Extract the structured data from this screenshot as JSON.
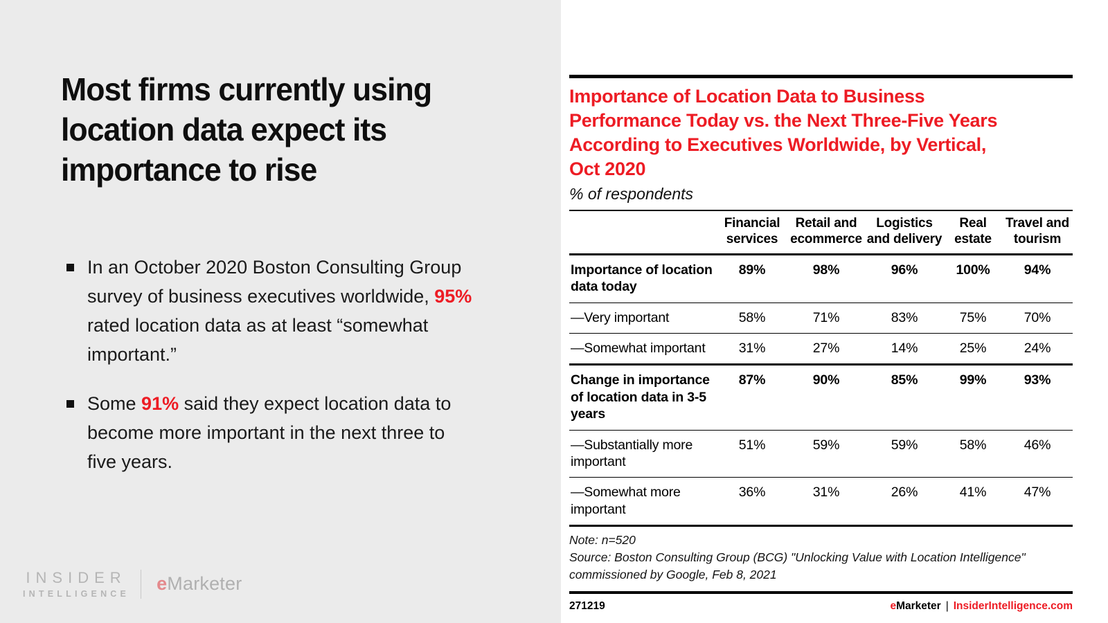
{
  "left": {
    "headline_lines": [
      "Most firms currently using",
      "location data expect its",
      "importance to rise"
    ],
    "bullets": [
      {
        "pre": "In an October 2020 Boston Consulting Group survey of business executives worldwide, ",
        "highlight": "95%",
        "post": " rated location data as at least “somewhat important.”"
      },
      {
        "pre": "Some ",
        "highlight": "91%",
        "post": " said they expect location data to become more important in the next three to five years."
      }
    ],
    "logo": {
      "insider_line1": "INSIDER",
      "insider_line2": "INTELLIGENCE",
      "emarketer_e": "e",
      "emarketer_rest": "Marketer"
    }
  },
  "chart": {
    "title_lines": [
      "Importance of Location Data to Business",
      "Performance Today vs. the Next Three-Five Years",
      "According to Executives Worldwide, by Vertical,",
      "Oct 2020"
    ],
    "subtitle": "% of respondents",
    "note": "Note: n=520",
    "source": "Source: Boston Consulting Group (BCG) \"Unlocking Value with Location Intelligence\" commissioned by Google, Feb 8, 2021",
    "footer_id": "271219",
    "footer_brand_e": "e",
    "footer_brand_rest": "Marketer",
    "footer_sep": "|",
    "footer_site": "InsiderIntelligence.com"
  },
  "chart_data": {
    "type": "table",
    "title": "Importance of Location Data to Business Performance Today vs. the Next Three-Five Years According to Executives Worldwide, by Vertical, Oct 2020",
    "subtitle": "% of respondents",
    "columns": [
      "Financial services",
      "Retail and ecommerce",
      "Logistics and delivery",
      "Real estate",
      "Travel and tourism"
    ],
    "rows": [
      {
        "label": "Importance of location data today",
        "bold": true,
        "values": [
          "89%",
          "98%",
          "96%",
          "100%",
          "94%"
        ]
      },
      {
        "label": "—Very important",
        "bold": false,
        "values": [
          "58%",
          "71%",
          "83%",
          "75%",
          "70%"
        ]
      },
      {
        "label": "—Somewhat important",
        "bold": false,
        "values": [
          "31%",
          "27%",
          "14%",
          "25%",
          "24%"
        ]
      },
      {
        "label": "Change in importance of location data in 3-5 years",
        "bold": true,
        "values": [
          "87%",
          "90%",
          "85%",
          "99%",
          "93%"
        ]
      },
      {
        "label": "—Substantially more important",
        "bold": false,
        "values": [
          "51%",
          "59%",
          "59%",
          "58%",
          "46%"
        ]
      },
      {
        "label": "—Somewhat more important",
        "bold": false,
        "values": [
          "36%",
          "31%",
          "26%",
          "41%",
          "47%"
        ]
      }
    ],
    "note": "Note: n=520",
    "source": "Source: Boston Consulting Group (BCG) \"Unlocking Value with Location Intelligence\" commissioned by Google, Feb 8, 2021",
    "chart_id": "271219"
  },
  "colors": {
    "accent_red": "#ed1c24",
    "panel_gray": "#ebebeb",
    "text_black": "#0f0f0f",
    "logo_gray": "#b5b5b5"
  }
}
